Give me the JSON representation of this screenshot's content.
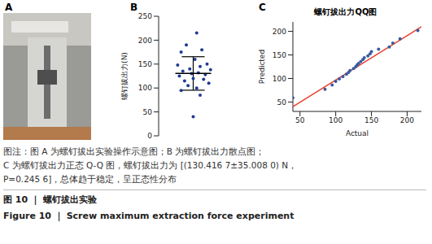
{
  "panel_labels": [
    "A",
    "B",
    "C"
  ],
  "chart_data": [
    {
      "type": "scatter",
      "y_label": "螺钉拔出力(N)",
      "x": [
        0.1,
        -0.2,
        0.25,
        -0.35,
        0.05,
        0.4,
        -0.45,
        0.2,
        -0.1,
        0.5,
        -0.3,
        0.15,
        -0.05,
        0.35,
        -0.4,
        0.0,
        0.3,
        -0.25,
        0.45,
        -0.15,
        0.1,
        -0.35,
        0.2,
        0.0
      ],
      "values": [
        215,
        190,
        180,
        175,
        160,
        150,
        148,
        145,
        140,
        138,
        135,
        132,
        130,
        128,
        125,
        120,
        118,
        115,
        110,
        105,
        100,
        95,
        85,
        40
      ],
      "mean": 130.4167,
      "sd": 35.008,
      "color": "#1f3a93",
      "marker": "circle",
      "xlim": [
        -1,
        1
      ],
      "ylim": [
        0,
        250
      ],
      "yticks": [
        0,
        50,
        100,
        150,
        200,
        250
      ],
      "tick_labels": "y",
      "grid": false
    },
    {
      "type": "scatter",
      "title": "螺钉拔出力QQ图",
      "x_label": "Actual",
      "y_label": "Predicted",
      "x": [
        40,
        85,
        95,
        100,
        105,
        110,
        115,
        118,
        120,
        125,
        128,
        130,
        132,
        135,
        138,
        140,
        145,
        148,
        150,
        160,
        175,
        180,
        190,
        215
      ],
      "values": [
        59,
        77,
        86,
        94,
        99,
        104,
        109,
        113,
        117,
        121,
        125,
        129,
        132,
        136,
        140,
        144,
        148,
        152,
        157,
        162,
        167,
        175,
        184,
        202
      ],
      "color": "#3a5ba0",
      "marker": "circle",
      "reference_line": {
        "x": [
          40,
          220
        ],
        "values": [
          40,
          210
        ],
        "color": "#e8412c"
      },
      "xlim": [
        40,
        220
      ],
      "xticks": [
        50,
        100,
        150,
        200
      ],
      "ylim": [
        30,
        220
      ],
      "yticks": [
        50,
        100,
        150,
        200
      ],
      "grid": false
    }
  ],
  "caption": [
    "图注：图 A 为螺钉拔出实验操作示意图；B 为螺钉拔出力散点图；",
    "C 为螺钉拔出力正态 Q-Q 图，螺钉拔出力为 [(130.416 7±35.008 0) N，",
    "P=0.245 6]，总体趋于稳定，呈正态性分布"
  ],
  "figure_title": "图 10 ｜ 螺钉拔出实验",
  "figure_title_en": "Figure 10 ｜ Screw maximum extraction force experiment"
}
